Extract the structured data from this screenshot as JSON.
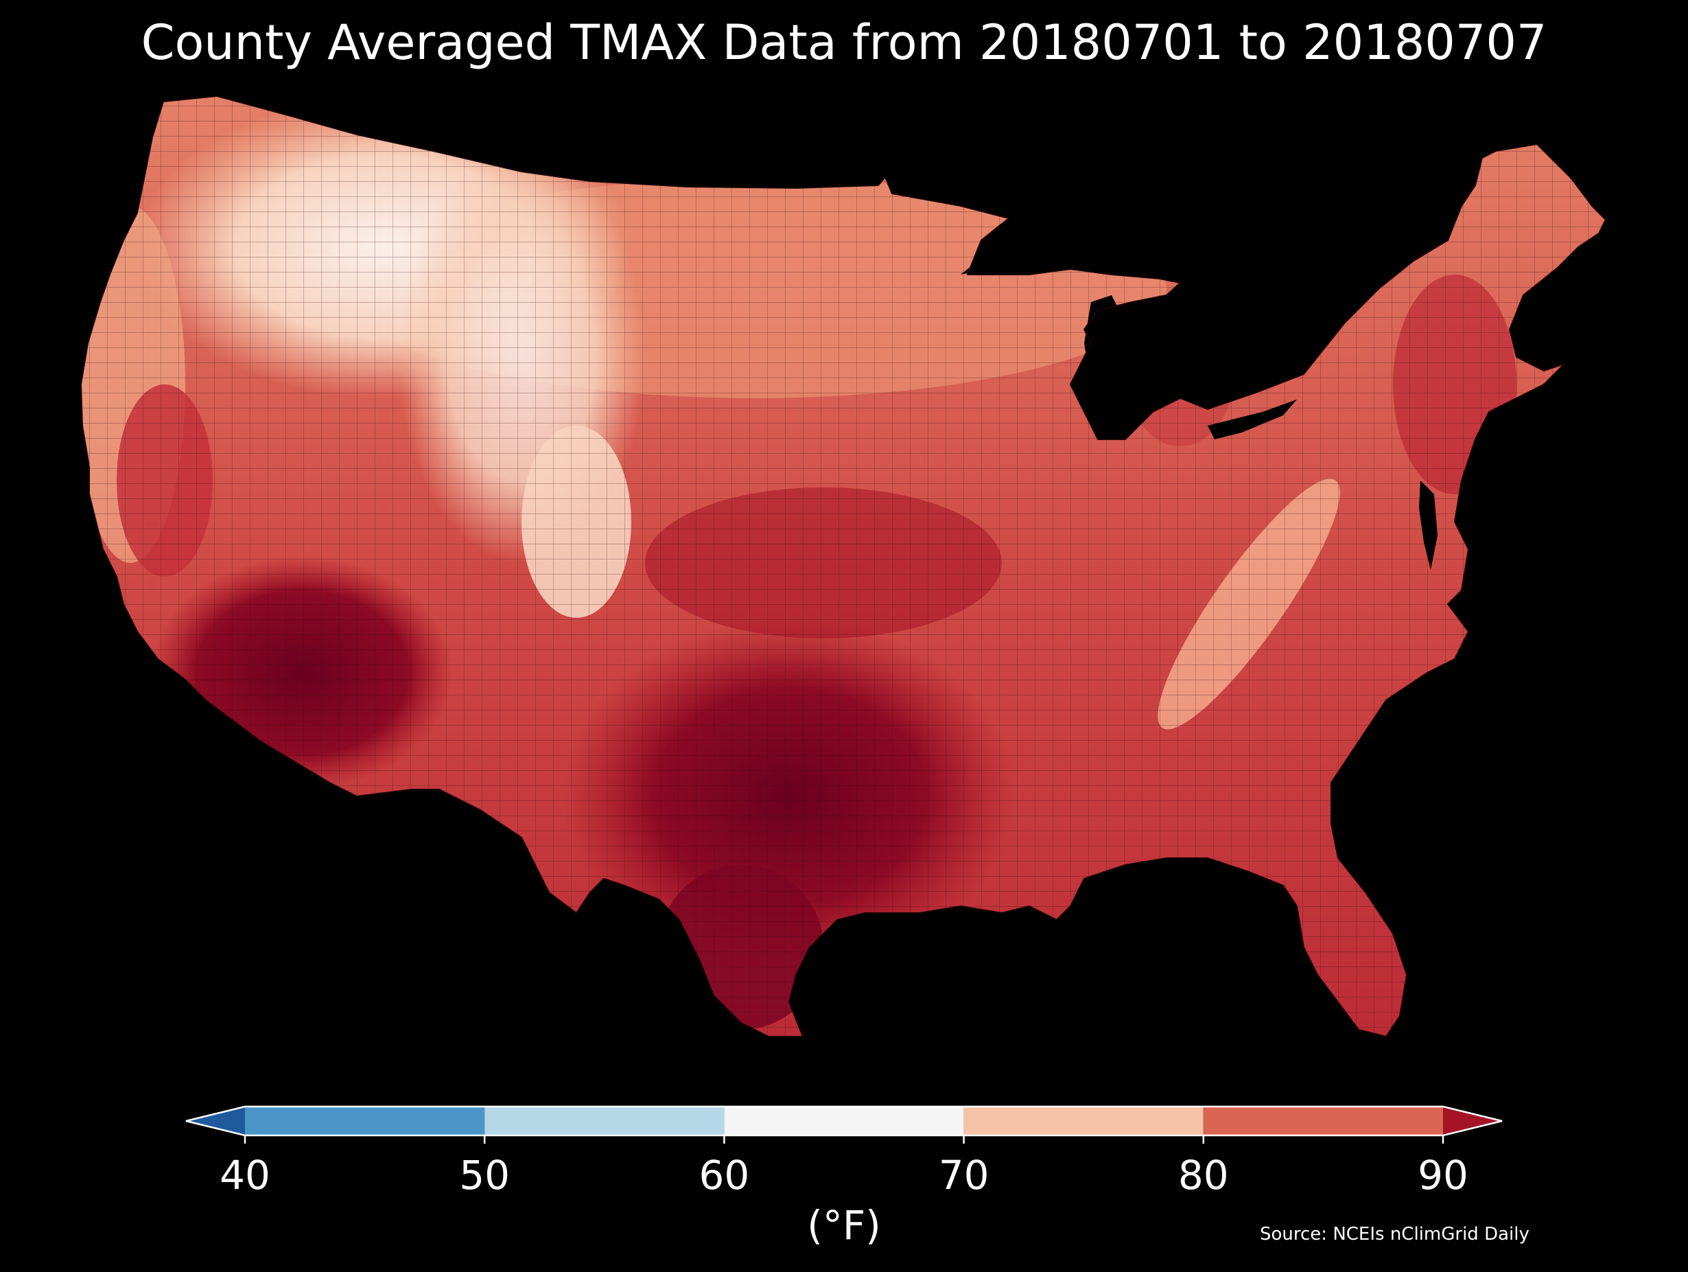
{
  "title": "County Averaged TMAX Data from 20180701 to 20180707",
  "source": "Source: NCEIs nClimGrid Daily",
  "colorbar": {
    "units": "(°F)",
    "ticks": [
      "40",
      "50",
      "60",
      "70",
      "80",
      "90"
    ],
    "tick_values": [
      40,
      50,
      60,
      70,
      80,
      90
    ],
    "extend": "both",
    "bins": [
      {
        "from": null,
        "to": 40,
        "color": "#1f5a9e"
      },
      {
        "from": 40,
        "to": 50,
        "color": "#4b96c8"
      },
      {
        "from": 50,
        "to": 60,
        "color": "#b6d7e8"
      },
      {
        "from": 60,
        "to": 70,
        "color": "#f5f5f5"
      },
      {
        "from": 70,
        "to": 80,
        "color": "#f7c3a6"
      },
      {
        "from": 80,
        "to": 90,
        "color": "#db6553"
      },
      {
        "from": 90,
        "to": null,
        "color": "#a51326"
      }
    ]
  },
  "map": {
    "region": "Contiguous United States",
    "background": "#000000",
    "water_color": "#000000",
    "border_color": "#2a0a0a",
    "fill_colors": {
      "coolest": "#fbefea",
      "cool": "#f7c3a6",
      "mild": "#eea182",
      "warm": "#db6553",
      "hot": "#c4313a",
      "hotter": "#a51326",
      "hottest": "#6b0021"
    }
  }
}
